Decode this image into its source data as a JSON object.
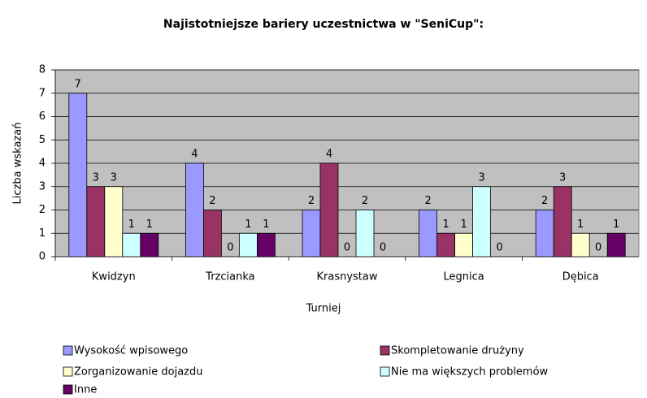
{
  "chart_data": {
    "type": "bar",
    "title": "Najistotniejsze bariery uczestnictwa w \"SeniCup\":",
    "x_label": "Turniej",
    "y_label": "Liczba wskazań",
    "categories": [
      "Kwidzyn",
      "Trzcianka",
      "Krasnystaw",
      "Legnica",
      "Dębica"
    ],
    "series": [
      {
        "name": "Wysokość wpisowego",
        "color": "#9999ff",
        "values": [
          7,
          4,
          2,
          2,
          2
        ]
      },
      {
        "name": "Skompletowanie drużyny",
        "color": "#993366",
        "values": [
          3,
          2,
          4,
          1,
          3
        ]
      },
      {
        "name": "Zorganizowanie dojazdu",
        "color": "#ffffcc",
        "values": [
          3,
          0,
          0,
          1,
          1
        ]
      },
      {
        "name": "Nie ma większych problemów",
        "color": "#ccffff",
        "values": [
          1,
          1,
          2,
          3,
          0
        ]
      },
      {
        "name": "Inne",
        "color": "#660066",
        "values": [
          1,
          1,
          0,
          0,
          1
        ]
      }
    ],
    "ylim": [
      0,
      8
    ],
    "yticks": [
      0,
      1,
      2,
      3,
      4,
      5,
      6,
      7,
      8
    ],
    "grid": true
  }
}
